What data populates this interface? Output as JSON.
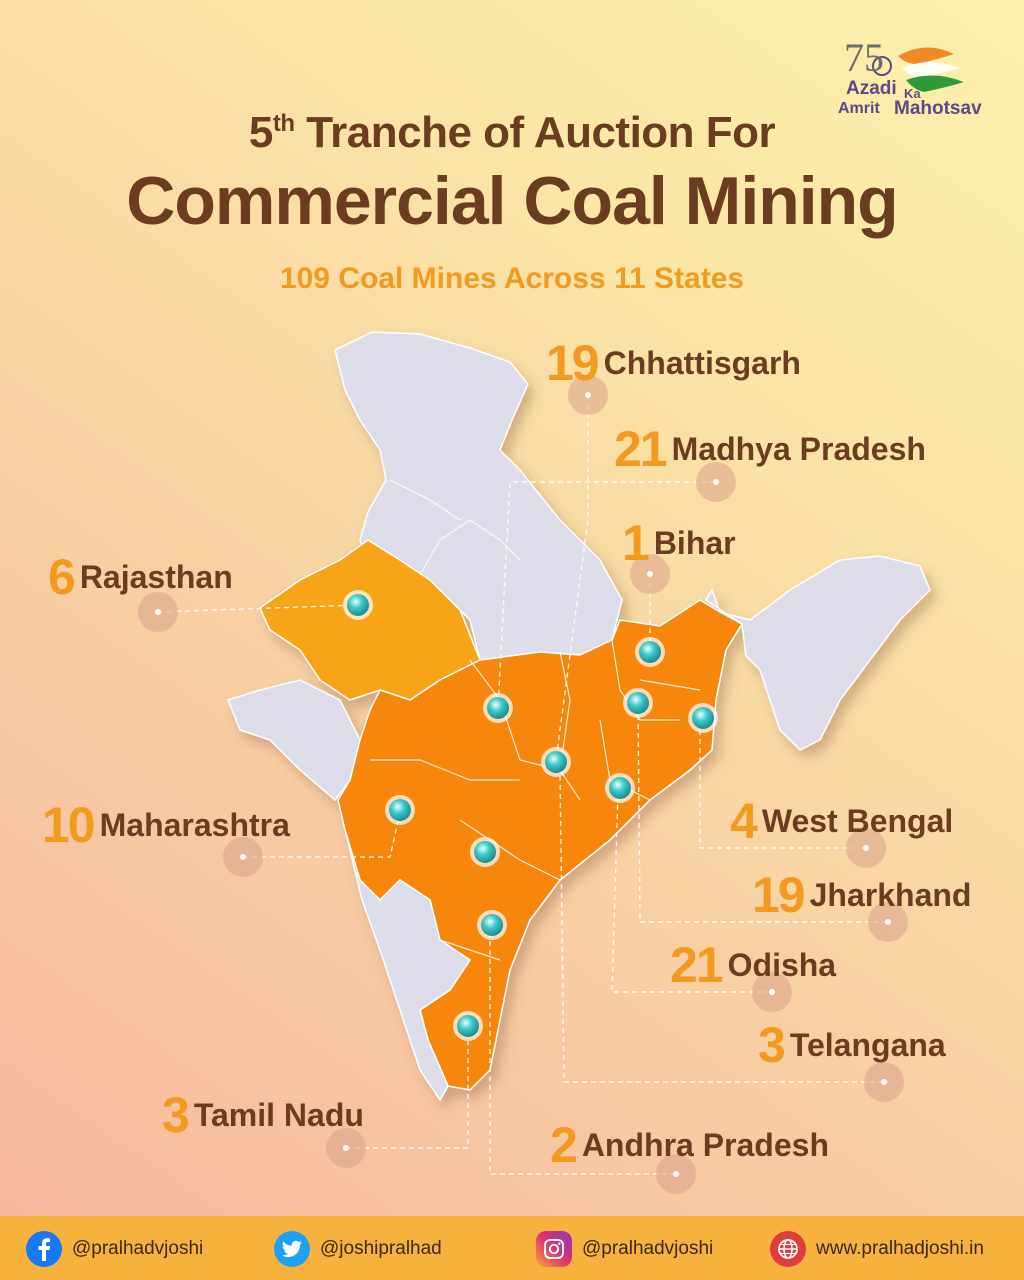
{
  "header": {
    "title_line1_prefix": "5",
    "title_line1_sup": "th",
    "title_line1_rest": " Tranche of Auction For",
    "title_line2": "Commercial Coal Mining",
    "subtitle": "109 Coal Mines Across 11 States"
  },
  "logo": {
    "number": "75",
    "line1": "Azadi",
    "line2a": "Ka",
    "line2b": "Amrit",
    "line3": "Mahotsav"
  },
  "states": [
    {
      "count": "19",
      "name": "Chhattisgarh"
    },
    {
      "count": "21",
      "name": "Madhya Pradesh"
    },
    {
      "count": "1",
      "name": "Bihar"
    },
    {
      "count": "6",
      "name": "Rajasthan"
    },
    {
      "count": "10",
      "name": "Maharashtra"
    },
    {
      "count": "4",
      "name": "West Bengal"
    },
    {
      "count": "19",
      "name": "Jharkhand"
    },
    {
      "count": "21",
      "name": "Odisha"
    },
    {
      "count": "3",
      "name": "Telangana"
    },
    {
      "count": "3",
      "name": "Tamil Nadu"
    },
    {
      "count": "2",
      "name": "Andhra Pradesh"
    }
  ],
  "footer": {
    "facebook": "@pralhadvjoshi",
    "twitter": "@joshipralhad",
    "instagram": "@pralhadvjoshi",
    "website": "www.pralhadjoshi.in"
  },
  "icons": {
    "facebook": "facebook-icon",
    "twitter": "twitter-icon",
    "instagram": "instagram-icon",
    "website": "globe-icon",
    "marker": "map-pin-icon"
  },
  "colors": {
    "title": "#6b3c1f",
    "accent": "#f39a1e",
    "highlight_state": "#f7860f",
    "other_state": "#dcdde8",
    "footer": "#f6b23c"
  }
}
